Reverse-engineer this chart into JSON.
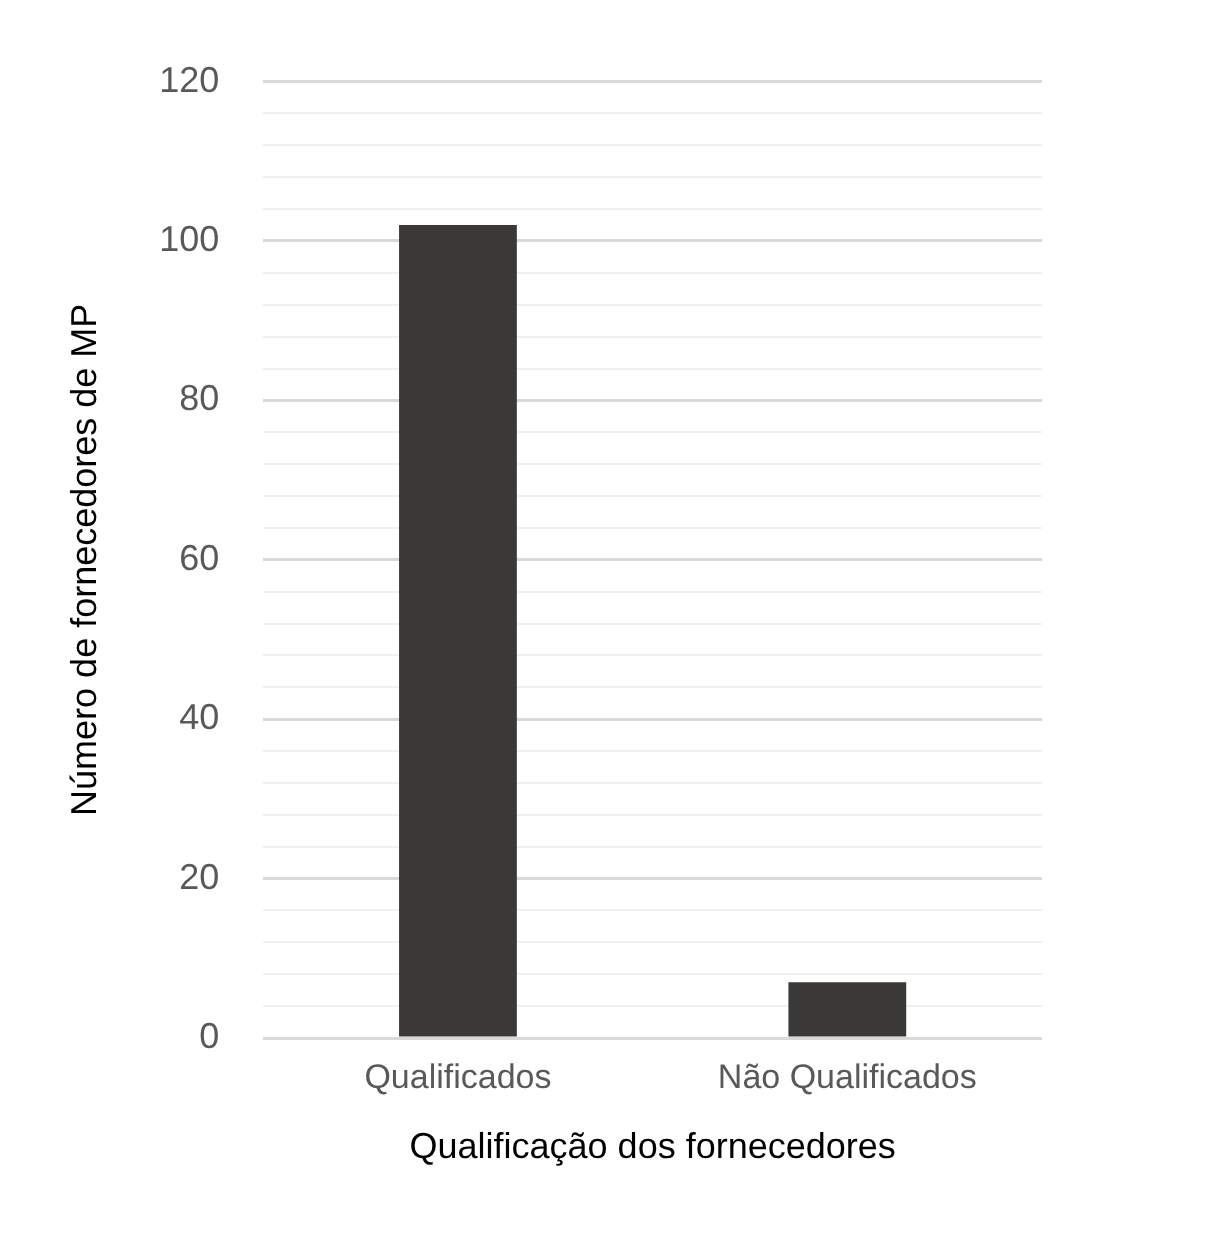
{
  "chart_data": {
    "type": "bar",
    "xlabel": "Qualificação dos fornecedores",
    "ylabel": "Número de fornecedores de MP",
    "categories": [
      "Qualificados",
      "Não Qualificados"
    ],
    "values": [
      102,
      7
    ],
    "color": "#3a3938",
    "ylim": [
      0,
      120
    ],
    "yticks": [
      0,
      {
        "value": 4,
        "label": null
      },
      {
        "value": 8,
        "label": null
      },
      {
        "value": 12,
        "label": null
      },
      {
        "value": 16,
        "label": null
      },
      20,
      {
        "value": 24,
        "label": null
      },
      {
        "value": 28,
        "label": null
      },
      {
        "value": 32,
        "label": null
      },
      {
        "value": 36,
        "label": null
      },
      40,
      {
        "value": 44,
        "label": null
      },
      {
        "value": 48,
        "label": null
      },
      {
        "value": 52,
        "label": null
      },
      {
        "value": 56,
        "label": null
      },
      60,
      {
        "value": 64,
        "label": null
      },
      {
        "value": 68,
        "label": null
      },
      {
        "value": 72,
        "label": null
      },
      {
        "value": 76,
        "label": null
      },
      80,
      {
        "value": 84,
        "label": null
      },
      {
        "value": 88,
        "label": null
      },
      {
        "value": 92,
        "label": null
      },
      {
        "value": 96,
        "label": null
      },
      100,
      {
        "value": 104,
        "label": null
      },
      {
        "value": 108,
        "label": null
      },
      {
        "value": 112,
        "label": null
      },
      {
        "value": 116,
        "label": null
      },
      120
    ],
    "grid": "y"
  }
}
